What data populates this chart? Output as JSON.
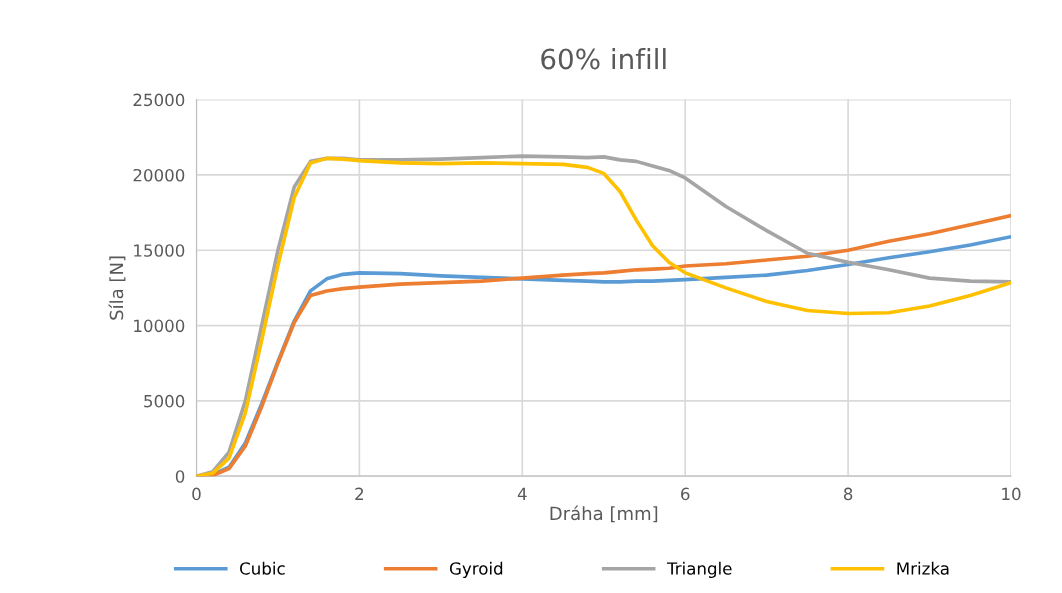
{
  "chart_data": {
    "type": "line",
    "title": "60% infill",
    "xlabel": "Dráha [mm]",
    "ylabel": "Síla [N]",
    "x": [
      0,
      0.2,
      0.4,
      0.6,
      0.8,
      1.0,
      1.2,
      1.4,
      1.6,
      1.8,
      2.0,
      2.5,
      3,
      3.5,
      4,
      4.5,
      4.8,
      5,
      5.2,
      5.4,
      5.6,
      5.8,
      6,
      6.5,
      7,
      7.5,
      8,
      8.5,
      9,
      9.5,
      10
    ],
    "series": [
      {
        "name": "Cubic",
        "color": "#5b9bd5",
        "values": [
          0,
          100,
          600,
          2200,
          4800,
          7600,
          10300,
          12300,
          13100,
          13400,
          13500,
          13450,
          13300,
          13200,
          13100,
          13000,
          12950,
          12900,
          12900,
          12950,
          12950,
          13000,
          13050,
          13200,
          13350,
          13650,
          14050,
          14500,
          14900,
          15350,
          15900
        ]
      },
      {
        "name": "Gyroid",
        "color": "#ed7d31",
        "values": [
          0,
          50,
          500,
          2000,
          4600,
          7500,
          10200,
          12000,
          12300,
          12450,
          12550,
          12750,
          12850,
          12950,
          13150,
          13350,
          13450,
          13500,
          13600,
          13700,
          13750,
          13800,
          13950,
          14100,
          14350,
          14600,
          15000,
          15600,
          16100,
          16700,
          17300
        ]
      },
      {
        "name": "Triangle",
        "color": "#a5a5a5",
        "values": [
          0,
          300,
          1600,
          5000,
          10000,
          15000,
          19200,
          20900,
          21100,
          21100,
          21000,
          21000,
          21050,
          21150,
          21250,
          21200,
          21150,
          21200,
          21000,
          20900,
          20600,
          20300,
          19800,
          17900,
          16300,
          14800,
          14200,
          13700,
          13150,
          12950,
          12900
        ]
      },
      {
        "name": "Mrizka",
        "color": "#ffc000",
        "values": [
          0,
          200,
          1200,
          4200,
          9000,
          14000,
          18500,
          20800,
          21100,
          21050,
          20950,
          20800,
          20750,
          20800,
          20750,
          20700,
          20500,
          20100,
          18900,
          17000,
          15300,
          14200,
          13500,
          12500,
          11600,
          11000,
          10800,
          10850,
          11300,
          12000,
          12850
        ]
      }
    ],
    "xlim": [
      0,
      10
    ],
    "xticks": [
      0,
      2,
      4,
      6,
      8,
      10
    ],
    "ylim": [
      0,
      25000
    ],
    "yticks": [
      0,
      5000,
      10000,
      15000,
      20000,
      25000
    ],
    "grid": true,
    "legend": "bottom",
    "marker": "none",
    "line_style": "solid"
  }
}
